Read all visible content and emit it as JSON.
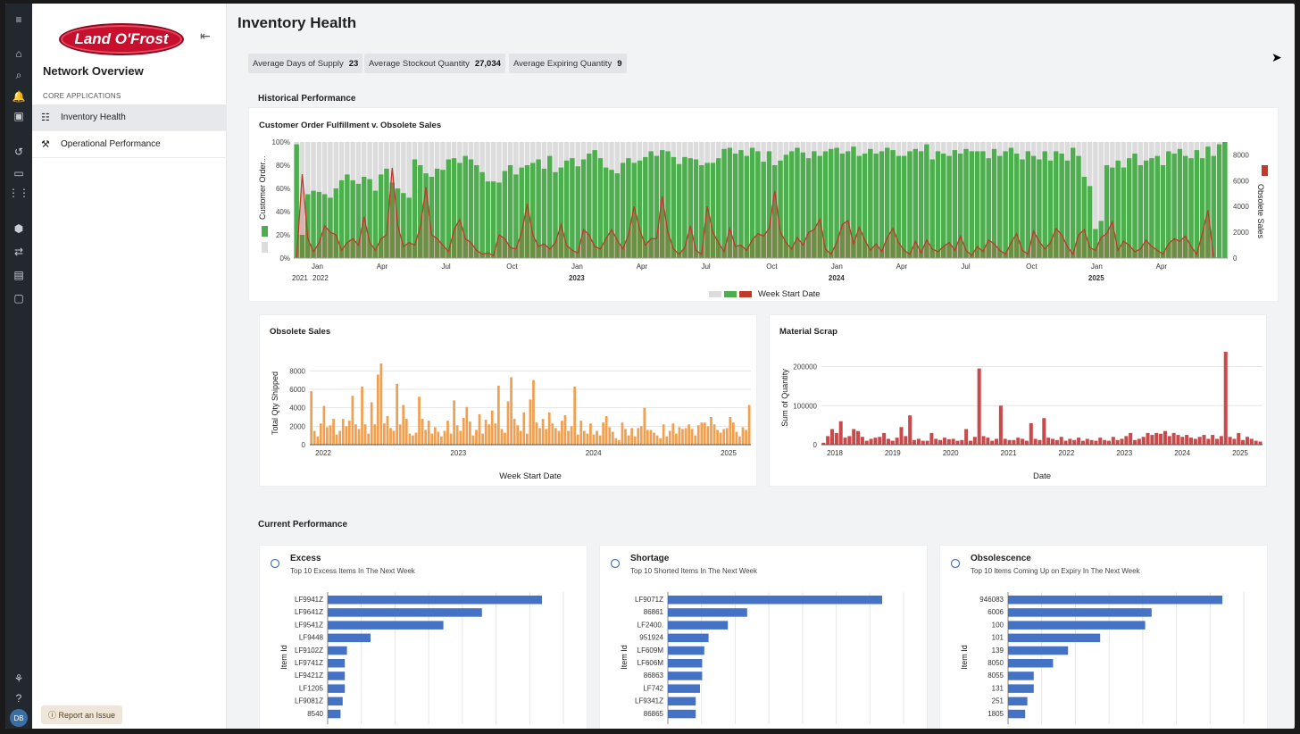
{
  "app": {
    "brand": "Land O'Frost",
    "nav_title": "Network Overview",
    "section_label": "CORE APPLICATIONS",
    "report_label": "Report an Issue",
    "user_initials": "DB"
  },
  "rail_icons": [
    "menu-icon",
    "home-icon",
    "search-icon",
    "bell-icon",
    "apps-badge-icon",
    "history-icon",
    "folder-icon",
    "grid-icon",
    "cube-icon",
    "flow-icon",
    "calendar-icon",
    "monitor-icon",
    "network-icon",
    "help-icon"
  ],
  "nav": [
    {
      "label": "Inventory Health",
      "icon": "bar-list-icon"
    },
    {
      "label": "Operational Performance",
      "icon": "hammer-icon"
    }
  ],
  "page": {
    "title": "Inventory Health"
  },
  "kpis": [
    {
      "label": "Average Days of Supply",
      "value": "23"
    },
    {
      "label": "Average Stockout Quantity",
      "value": "27,034"
    },
    {
      "label": "Average Expiring Quantity",
      "value": "9"
    }
  ],
  "sections": {
    "historical": "Historical Performance",
    "current": "Current Performance"
  },
  "colors": {
    "green": "#4cae4c",
    "gray": "#dcdcdc",
    "red": "#c0392b",
    "orange": "#f0a050",
    "scrap": "#c94a4a",
    "blue": "#4472c4"
  },
  "chart_data": [
    {
      "id": "fulfillment",
      "type": "bar+line",
      "title": "Customer Order Fulfillment v. Obsolete Sales",
      "ylabel": "Customer Order...",
      "y2label": "Obsolete Sales",
      "xlabel": "Week Start Date",
      "yticks": [
        "100%",
        "80%",
        "60%",
        "40%",
        "20%",
        "0%"
      ],
      "y2ticks": [
        "8000",
        "6000",
        "4000",
        "2000",
        "0"
      ],
      "ylim": [
        0,
        100
      ],
      "y2lim": [
        0,
        9000
      ],
      "xticks": [
        {
          "t": "Jan",
          "y": ""
        },
        {
          "t": "Apr",
          "y": ""
        },
        {
          "t": "Jul",
          "y": ""
        },
        {
          "t": "Oct",
          "y": ""
        },
        {
          "t": "Jan",
          "y": "2023"
        },
        {
          "t": "Apr",
          "y": ""
        },
        {
          "t": "Jul",
          "y": ""
        },
        {
          "t": "Oct",
          "y": ""
        },
        {
          "t": "Jan",
          "y": "2024"
        },
        {
          "t": "Apr",
          "y": ""
        },
        {
          "t": "Jul",
          "y": ""
        },
        {
          "t": "Oct",
          "y": ""
        },
        {
          "t": "Jan",
          "y": "2025"
        },
        {
          "t": "Apr",
          "y": ""
        }
      ],
      "year_labels": [
        "2021",
        "2022"
      ],
      "fulfillment": [
        98,
        20,
        55,
        58,
        57,
        55,
        52,
        60,
        67,
        72,
        67,
        64,
        70,
        68,
        58,
        72,
        77,
        65,
        60,
        56,
        52,
        85,
        80,
        73,
        70,
        77,
        76,
        85,
        86,
        82,
        88,
        85,
        80,
        74,
        66,
        66,
        65,
        75,
        80,
        72,
        78,
        80,
        82,
        85,
        77,
        88,
        74,
        78,
        84,
        86,
        79,
        85,
        90,
        93,
        86,
        78,
        76,
        73,
        82,
        86,
        82,
        84,
        87,
        92,
        88,
        93,
        92,
        87,
        81,
        87,
        86,
        85,
        80,
        82,
        82,
        86,
        94,
        95,
        90,
        93,
        88,
        95,
        92,
        83,
        92,
        80,
        84,
        89,
        92,
        95,
        91,
        86,
        92,
        88,
        92,
        94,
        95,
        90,
        92,
        96,
        88,
        90,
        94,
        90,
        92,
        95,
        93,
        88,
        88,
        92,
        94,
        92,
        98,
        85,
        92,
        90,
        88,
        93,
        90,
        94,
        92,
        92,
        92,
        86,
        94,
        88,
        92,
        95,
        90,
        85,
        92,
        88,
        85,
        92,
        84,
        92,
        90,
        84,
        95,
        88,
        70,
        62,
        25,
        32,
        80,
        78,
        84,
        78,
        86,
        90,
        80,
        84,
        86,
        88,
        80,
        92,
        90,
        94,
        88,
        86,
        93,
        86,
        96,
        88,
        98,
        100
      ],
      "obsolete": [
        0,
        6500,
        1500,
        500,
        1200,
        2500,
        2000,
        1800,
        600,
        1200,
        1500,
        1000,
        3200,
        1200,
        600,
        1500,
        1800,
        7000,
        2500,
        900,
        1200,
        1000,
        2400,
        5500,
        1800,
        1500,
        1000,
        500,
        2200,
        3000,
        1500,
        1200,
        600,
        300,
        400,
        200,
        1800,
        1500,
        800,
        700,
        2000,
        4200,
        1800,
        900,
        1100,
        700,
        1200,
        2600,
        1000,
        600,
        400,
        2200,
        1800,
        900,
        700,
        1500,
        2200,
        1400,
        700,
        1800,
        4000,
        2200,
        1000,
        1500,
        1500,
        4800,
        2000,
        700,
        300,
        800,
        2500,
        600,
        300,
        4000,
        2000,
        1200,
        500,
        2300,
        900,
        1000,
        600,
        1400,
        1900,
        1700,
        2300,
        5200,
        2000,
        1200,
        700,
        1600,
        1000,
        2000,
        2200,
        3000,
        700,
        300,
        1200,
        2600,
        2900,
        1100,
        2400,
        1400,
        600,
        1100,
        500,
        1600,
        2300,
        1200,
        600,
        300,
        1300,
        400,
        1400,
        700,
        500,
        900,
        1200,
        600,
        1700,
        600,
        200,
        900,
        500,
        1400,
        1100,
        600,
        300,
        1200,
        1900,
        600,
        300,
        2100,
        1300,
        700,
        1200,
        2300,
        1800,
        900,
        300,
        1800,
        2200,
        800,
        600,
        1600,
        1900,
        2800,
        600,
        1300,
        1000,
        500,
        700,
        1400,
        900,
        600,
        300,
        1100,
        1500,
        1300,
        1700,
        900,
        300,
        1900,
        3700,
        100
      ]
    },
    {
      "id": "obsolete-sales",
      "type": "bar",
      "title": "Obsolete Sales",
      "ylabel": "Total Qty Shipped",
      "xlabel": "Week Start Date",
      "yticks": [
        "8000",
        "6000",
        "4000",
        "2000",
        "0"
      ],
      "ylim": [
        0,
        9000
      ],
      "xticks": [
        "2022",
        "2023",
        "2024",
        "2025"
      ],
      "values": [
        5800,
        1500,
        900,
        2300,
        4200,
        1900,
        2100,
        2800,
        1100,
        1500,
        2800,
        2000,
        2600,
        5300,
        2200,
        1700,
        6300,
        2200,
        1200,
        4600,
        2200,
        7600,
        8800,
        2300,
        3100,
        1800,
        1500,
        6600,
        2200,
        4300,
        2800,
        1200,
        1000,
        1300,
        5200,
        2800,
        1600,
        2600,
        1200,
        1900,
        1400,
        900,
        1500,
        2600,
        1200,
        4800,
        2100,
        1500,
        2900,
        4100,
        2500,
        1000,
        1600,
        3300,
        1200,
        2700,
        2200,
        3700,
        2300,
        6400,
        1700,
        1300,
        4700,
        7300,
        2800,
        2100,
        1500,
        3500,
        1200,
        4900,
        7000,
        2400,
        1800,
        2800,
        1700,
        3500,
        2300,
        1800,
        1500,
        2600,
        3200,
        1500,
        2000,
        6300,
        1100,
        2600,
        1500,
        1200,
        2300,
        1100,
        1500,
        1000,
        2400,
        3100,
        1900,
        1400,
        700,
        500,
        2400,
        1700,
        1000,
        1800,
        900,
        1800,
        2000,
        4000,
        1600,
        1600,
        1300,
        1000,
        700,
        2200,
        900,
        1500,
        2300,
        1200,
        1900,
        1700,
        1800,
        2200,
        1700,
        1000,
        2100,
        2400,
        2400,
        2000,
        3000,
        2200,
        1600,
        1300,
        1700,
        1800,
        3000,
        2400,
        1400,
        900,
        1900,
        1600,
        4300
      ]
    },
    {
      "id": "material-scrap",
      "type": "bar",
      "title": "Material Scrap",
      "ylabel": "Sum of Quantity",
      "xlabel": "Date",
      "yticks": [
        "200000",
        "100000",
        "0"
      ],
      "ylim": [
        0,
        240000
      ],
      "xticks": [
        "2018",
        "2019",
        "2020",
        "2021",
        "2022",
        "2023",
        "2024",
        "2025"
      ],
      "values": [
        5000,
        22000,
        40000,
        30000,
        60000,
        18000,
        22000,
        40000,
        35000,
        20000,
        10000,
        15000,
        18000,
        20000,
        30000,
        15000,
        10000,
        18000,
        45000,
        22000,
        75000,
        12000,
        15000,
        10000,
        10000,
        30000,
        15000,
        12000,
        18000,
        14000,
        15000,
        10000,
        12000,
        40000,
        10000,
        20000,
        195000,
        22000,
        18000,
        10000,
        15000,
        100000,
        15000,
        12000,
        12000,
        18000,
        15000,
        10000,
        55000,
        15000,
        12000,
        68000,
        18000,
        15000,
        12000,
        20000,
        10000,
        15000,
        12000,
        18000,
        10000,
        15000,
        12000,
        10000,
        18000,
        12000,
        10000,
        20000,
        12000,
        15000,
        22000,
        30000,
        12000,
        15000,
        20000,
        30000,
        25000,
        30000,
        28000,
        35000,
        22000,
        30000,
        25000,
        20000,
        25000,
        18000,
        15000,
        20000,
        25000,
        15000,
        25000,
        15000,
        22000,
        238000,
        20000,
        15000,
        30000,
        12000,
        20000,
        15000,
        10000,
        8000
      ]
    },
    {
      "id": "excess",
      "type": "hbar",
      "title": "Excess",
      "subtitle": "Top 10 Excess Items In The Next Week",
      "ylabel": "Item Id",
      "categories": [
        "LF9941Z",
        "LF9641Z",
        "LF9541Z",
        "LF9448",
        "LF9102Z",
        "LF9741Z",
        "LF9421Z",
        "LF1205",
        "LF9081Z",
        "8540"
      ],
      "values": [
        100,
        72,
        54,
        20,
        9,
        8,
        8,
        8,
        7,
        6
      ]
    },
    {
      "id": "shortage",
      "type": "hbar",
      "title": "Shortage",
      "subtitle": "Top 10 Shorted Items In The Next Week",
      "ylabel": "Item Id",
      "categories": [
        "LF9071Z",
        "86861",
        "LF2400.",
        "951924",
        "LF609M",
        "LF606M",
        "86863",
        "LF742",
        "LF9341Z",
        "86865"
      ],
      "values": [
        100,
        37,
        28,
        19,
        17,
        16,
        16,
        15,
        13,
        13
      ]
    },
    {
      "id": "obsolescence",
      "type": "hbar",
      "title": "Obsolescence",
      "subtitle": "Top 10 Items Coming Up on Expiry In The Next Week",
      "ylabel": "Item Id",
      "categories": [
        "946083",
        "6006",
        "100",
        "101",
        "139",
        "8050",
        "8055",
        "131",
        "251",
        "1805"
      ],
      "values": [
        100,
        67,
        64,
        43,
        28,
        21,
        12,
        12,
        9,
        8
      ]
    }
  ]
}
